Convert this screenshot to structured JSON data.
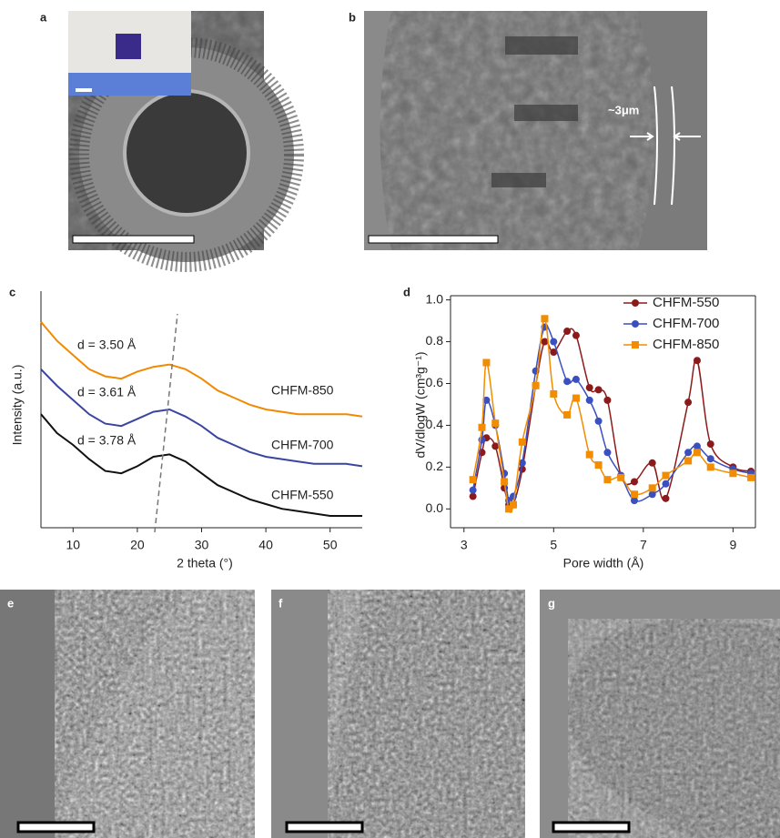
{
  "panels": [
    "a",
    "b",
    "c",
    "d",
    "e",
    "f",
    "g"
  ],
  "annotations": [
    "~3μm"
  ],
  "chart_data": [
    {
      "type": "line",
      "xlabel": "2 theta (°)",
      "ylabel": "Intensity (a.u.)",
      "xlim": [
        5,
        55
      ],
      "xticks": [
        10,
        20,
        30,
        40,
        50
      ],
      "ylim": [
        0,
        10
      ],
      "annotations": [
        "d = 3.50 Å",
        "d = 3.61 Å",
        "d = 3.78 Å"
      ],
      "x": [
        5,
        7.5,
        10,
        12.5,
        15,
        17.5,
        20,
        22.5,
        25,
        27.5,
        30,
        32.5,
        35,
        37.5,
        40,
        42.5,
        45,
        47.5,
        50,
        52.5,
        55
      ],
      "series": [
        {
          "name": "CHFM-850",
          "color": "#f08a00",
          "values": [
            8.7,
            7.9,
            7.3,
            6.7,
            6.4,
            6.3,
            6.6,
            6.8,
            6.9,
            6.7,
            6.3,
            5.8,
            5.5,
            5.2,
            5.0,
            4.9,
            4.8,
            4.8,
            4.8,
            4.8,
            4.7
          ]
        },
        {
          "name": "CHFM-700",
          "color": "#3a45a0",
          "values": [
            6.7,
            6.0,
            5.4,
            4.8,
            4.4,
            4.3,
            4.6,
            4.9,
            5.0,
            4.7,
            4.3,
            3.8,
            3.5,
            3.2,
            3.0,
            2.9,
            2.8,
            2.7,
            2.7,
            2.7,
            2.6
          ]
        },
        {
          "name": "CHFM-550",
          "color": "#111111",
          "values": [
            4.8,
            4.0,
            3.5,
            2.9,
            2.4,
            2.3,
            2.6,
            3.0,
            3.1,
            2.8,
            2.3,
            1.8,
            1.5,
            1.2,
            1.0,
            0.8,
            0.7,
            0.6,
            0.5,
            0.5,
            0.5
          ]
        }
      ]
    },
    {
      "type": "line",
      "smooth": true,
      "legend": "upper right",
      "xlabel": "Pore width (Å)",
      "ylabel": "dV/dlogW (cm³g⁻¹)",
      "xlim": [
        2.7,
        9.5
      ],
      "xticks": [
        3,
        5,
        7,
        9
      ],
      "ylim": [
        -0.09,
        1.02
      ],
      "yticks": [
        {
          "value": 0,
          "label": "0.0"
        },
        0.2,
        0.4,
        0.6,
        0.8,
        {
          "value": 1,
          "label": "1.0"
        }
      ],
      "x": [
        3.2,
        3.4,
        3.5,
        3.7,
        3.9,
        4.0,
        4.1,
        4.3,
        4.6,
        4.8,
        5.0,
        5.3,
        5.5,
        5.8,
        6.0,
        6.2,
        6.5,
        6.8,
        7.2,
        7.5,
        8.0,
        8.2,
        8.5,
        9.0,
        9.4
      ],
      "series": [
        {
          "name": "CHFM-550",
          "color": "#8b1a1a",
          "marker": "circle",
          "values": [
            0.06,
            0.27,
            0.34,
            0.3,
            0.1,
            0.02,
            0.02,
            0.19,
            0.59,
            0.8,
            0.75,
            0.85,
            0.83,
            0.58,
            0.57,
            0.52,
            0.16,
            0.13,
            0.22,
            0.05,
            0.51,
            0.71,
            0.31,
            0.2,
            0.18
          ]
        },
        {
          "name": "CHFM-700",
          "color": "#3a4fc0",
          "marker": "circle",
          "values": [
            0.09,
            0.33,
            0.52,
            0.4,
            0.17,
            0.04,
            0.06,
            0.22,
            0.66,
            0.87,
            0.8,
            0.61,
            0.62,
            0.52,
            0.42,
            0.27,
            0.16,
            0.04,
            0.07,
            0.12,
            0.27,
            0.3,
            0.24,
            0.19,
            0.17
          ]
        },
        {
          "name": "CHFM-850",
          "color": "#f28c00",
          "marker": "square",
          "values": [
            0.14,
            0.39,
            0.7,
            0.41,
            0.13,
            0.0,
            0.02,
            0.32,
            0.59,
            0.91,
            0.55,
            0.45,
            0.53,
            0.26,
            0.21,
            0.14,
            0.15,
            0.07,
            0.1,
            0.16,
            0.23,
            0.27,
            0.2,
            0.17,
            0.15
          ]
        }
      ]
    }
  ]
}
